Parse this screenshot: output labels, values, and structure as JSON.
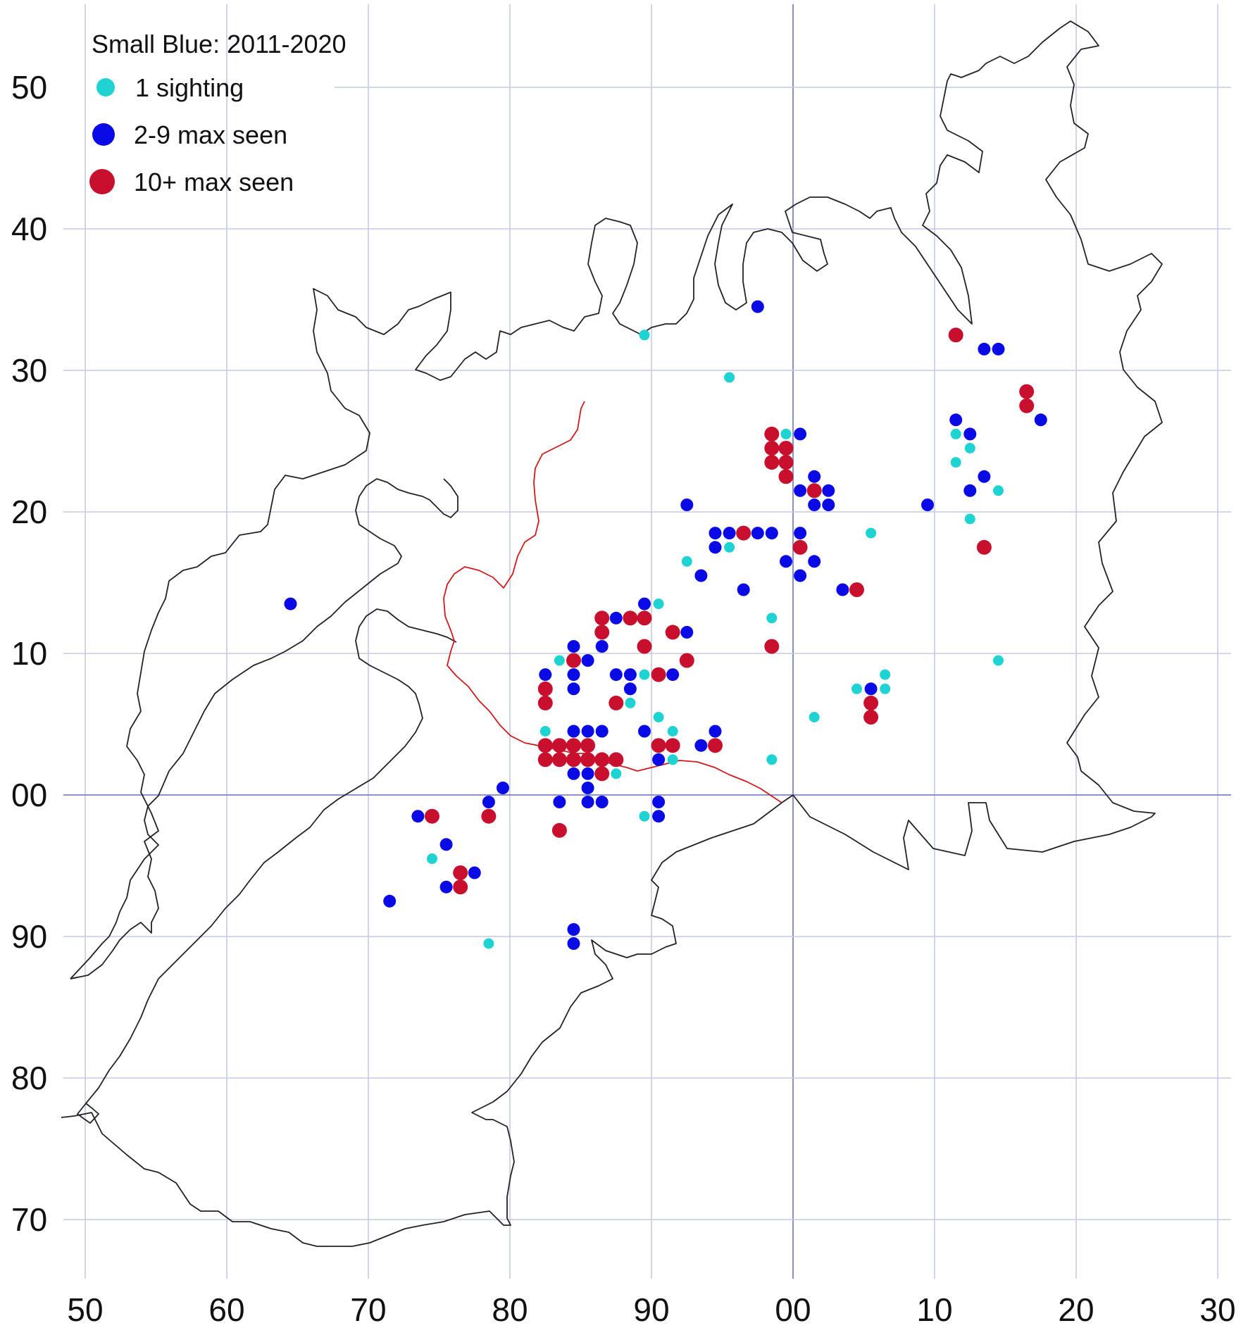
{
  "map": {
    "legend": {
      "title": "Small Blue:  2011-2020",
      "items": [
        {
          "key": "single",
          "label": "1 sighting",
          "color": "#1fd3d3"
        },
        {
          "key": "few",
          "label": "2-9 max seen",
          "color": "#0a0ae6"
        },
        {
          "key": "many",
          "label": "10+ max seen",
          "color": "#c8102e"
        }
      ]
    },
    "x_labels": [
      {
        "e": 50,
        "label": "50"
      },
      {
        "e": 60,
        "label": "60"
      },
      {
        "e": 70,
        "label": "70"
      },
      {
        "e": 80,
        "label": "80"
      },
      {
        "e": 90,
        "label": "90"
      },
      {
        "e": 100,
        "label": "00"
      },
      {
        "e": 110,
        "label": "10"
      },
      {
        "e": 120,
        "label": "20"
      },
      {
        "e": 130,
        "label": "30"
      }
    ],
    "y_labels": [
      {
        "n": 50,
        "label": "50"
      },
      {
        "n": 40,
        "label": "40"
      },
      {
        "n": 30,
        "label": "30"
      },
      {
        "n": 20,
        "label": "20"
      },
      {
        "n": 10,
        "label": "10"
      },
      {
        "n": 0,
        "label": "00"
      },
      {
        "n": -10,
        "label": "90"
      },
      {
        "n": -20,
        "label": "80"
      },
      {
        "n": -30,
        "label": "70"
      }
    ],
    "x_range": [
      47,
      131
    ],
    "y_range": [
      -36.5,
      56
    ],
    "sightings": {
      "single": [
        [
          89.5,
          32.5
        ],
        [
          95.5,
          29.5
        ],
        [
          99.5,
          25.5
        ],
        [
          111.5,
          25.5
        ],
        [
          112.5,
          24.5
        ],
        [
          111.5,
          23.5
        ],
        [
          114.5,
          21.5
        ],
        [
          112.5,
          19.5
        ],
        [
          95.5,
          17.5
        ],
        [
          105.5,
          18.5
        ],
        [
          92.5,
          16.5
        ],
        [
          90.5,
          13.5
        ],
        [
          98.5,
          12.5
        ],
        [
          83.5,
          9.5
        ],
        [
          114.5,
          9.5
        ],
        [
          89.5,
          8.5
        ],
        [
          106.5,
          8.5
        ],
        [
          88.5,
          6.5
        ],
        [
          104.5,
          7.5
        ],
        [
          106.5,
          7.5
        ],
        [
          90.5,
          5.5
        ],
        [
          101.5,
          5.5
        ],
        [
          82.5,
          4.5
        ],
        [
          91.5,
          4.5
        ],
        [
          91.5,
          2.5
        ],
        [
          98.5,
          2.5
        ],
        [
          87.5,
          1.5
        ],
        [
          89.5,
          -1.5
        ],
        [
          74.5,
          -4.5
        ],
        [
          78.5,
          -10.5
        ]
      ],
      "few": [
        [
          97.5,
          34.5
        ],
        [
          113.5,
          31.5
        ],
        [
          114.5,
          31.5
        ],
        [
          111.5,
          26.5
        ],
        [
          117.5,
          26.5
        ],
        [
          100.5,
          25.5
        ],
        [
          112.5,
          25.5
        ],
        [
          101.5,
          22.5
        ],
        [
          113.5,
          22.5
        ],
        [
          100.5,
          21.5
        ],
        [
          102.5,
          21.5
        ],
        [
          112.5,
          21.5
        ],
        [
          92.5,
          20.5
        ],
        [
          101.5,
          20.5
        ],
        [
          102.5,
          20.5
        ],
        [
          109.5,
          20.5
        ],
        [
          94.5,
          18.5
        ],
        [
          95.5,
          18.5
        ],
        [
          97.5,
          18.5
        ],
        [
          98.5,
          18.5
        ],
        [
          100.5,
          18.5
        ],
        [
          94.5,
          17.5
        ],
        [
          99.5,
          16.5
        ],
        [
          101.5,
          16.5
        ],
        [
          93.5,
          15.5
        ],
        [
          100.5,
          15.5
        ],
        [
          96.5,
          14.5
        ],
        [
          103.5,
          14.5
        ],
        [
          64.5,
          13.5
        ],
        [
          89.5,
          13.5
        ],
        [
          87.5,
          12.5
        ],
        [
          92.5,
          11.5
        ],
        [
          84.5,
          10.5
        ],
        [
          86.5,
          10.5
        ],
        [
          85.5,
          9.5
        ],
        [
          82.5,
          8.5
        ],
        [
          84.5,
          8.5
        ],
        [
          87.5,
          8.5
        ],
        [
          88.5,
          8.5
        ],
        [
          91.5,
          8.5
        ],
        [
          84.5,
          7.5
        ],
        [
          88.5,
          7.5
        ],
        [
          105.5,
          7.5
        ],
        [
          84.5,
          4.5
        ],
        [
          85.5,
          4.5
        ],
        [
          86.5,
          4.5
        ],
        [
          89.5,
          4.5
        ],
        [
          94.5,
          4.5
        ],
        [
          93.5,
          3.5
        ],
        [
          90.5,
          2.5
        ],
        [
          84.5,
          1.5
        ],
        [
          85.5,
          1.5
        ],
        [
          79.5,
          0.5
        ],
        [
          85.5,
          0.5
        ],
        [
          78.5,
          -0.5
        ],
        [
          83.5,
          -0.5
        ],
        [
          85.5,
          -0.5
        ],
        [
          86.5,
          -0.5
        ],
        [
          90.5,
          -0.5
        ],
        [
          73.5,
          -1.5
        ],
        [
          90.5,
          -1.5
        ],
        [
          75.5,
          -3.5
        ],
        [
          77.5,
          -5.5
        ],
        [
          75.5,
          -6.5
        ],
        [
          71.5,
          -7.5
        ],
        [
          84.5,
          -9.5
        ],
        [
          84.5,
          -10.5
        ]
      ],
      "many": [
        [
          111.5,
          32.5
        ],
        [
          116.5,
          28.5
        ],
        [
          116.5,
          27.5
        ],
        [
          98.5,
          25.5
        ],
        [
          98.5,
          24.5
        ],
        [
          99.5,
          24.5
        ],
        [
          98.5,
          23.5
        ],
        [
          99.5,
          23.5
        ],
        [
          99.5,
          22.5
        ],
        [
          101.5,
          21.5
        ],
        [
          96.5,
          18.5
        ],
        [
          100.5,
          17.5
        ],
        [
          113.5,
          17.5
        ],
        [
          104.5,
          14.5
        ],
        [
          86.5,
          12.5
        ],
        [
          88.5,
          12.5
        ],
        [
          89.5,
          12.5
        ],
        [
          86.5,
          11.5
        ],
        [
          91.5,
          11.5
        ],
        [
          89.5,
          10.5
        ],
        [
          98.5,
          10.5
        ],
        [
          84.5,
          9.5
        ],
        [
          92.5,
          9.5
        ],
        [
          90.5,
          8.5
        ],
        [
          82.5,
          7.5
        ],
        [
          82.5,
          6.5
        ],
        [
          87.5,
          6.5
        ],
        [
          105.5,
          6.5
        ],
        [
          105.5,
          5.5
        ],
        [
          82.5,
          3.5
        ],
        [
          83.5,
          3.5
        ],
        [
          84.5,
          3.5
        ],
        [
          85.5,
          3.5
        ],
        [
          90.5,
          3.5
        ],
        [
          91.5,
          3.5
        ],
        [
          94.5,
          3.5
        ],
        [
          82.5,
          2.5
        ],
        [
          83.5,
          2.5
        ],
        [
          84.5,
          2.5
        ],
        [
          85.5,
          2.5
        ],
        [
          86.5,
          2.5
        ],
        [
          87.5,
          2.5
        ],
        [
          86.5,
          1.5
        ],
        [
          74.5,
          -1.5
        ],
        [
          78.5,
          -1.5
        ],
        [
          83.5,
          -2.5
        ],
        [
          76.5,
          -5.5
        ],
        [
          76.5,
          -6.5
        ]
      ]
    }
  }
}
